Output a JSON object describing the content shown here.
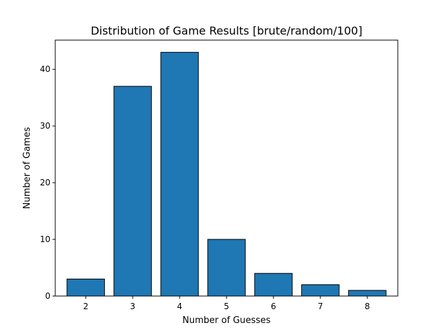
{
  "chart_data": {
    "type": "bar",
    "title": "Distribution of Game Results [brute/random/100]",
    "xlabel": "Number of Guesses",
    "ylabel": "Number of Games",
    "categories": [
      "2",
      "3",
      "4",
      "5",
      "6",
      "7",
      "8"
    ],
    "x": [
      2,
      3,
      4,
      5,
      6,
      7,
      8
    ],
    "values": [
      3,
      37,
      43,
      10,
      4,
      2,
      1
    ],
    "xlim": [
      1.35,
      8.65
    ],
    "ylim": [
      0,
      45.15
    ],
    "yticks": [
      0,
      10,
      20,
      30,
      40
    ],
    "bar_width": 0.8,
    "grid": false,
    "legend": "none",
    "bar_color": "#1f77b4",
    "edge_color": "#000000"
  }
}
